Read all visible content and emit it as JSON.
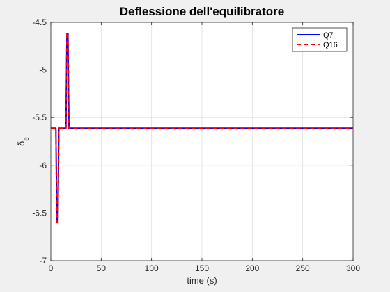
{
  "chart_data": {
    "type": "line",
    "title": "Deflessione dell'equilibratore",
    "xlabel": "time (s)",
    "ylabel": {
      "main": "δ",
      "sub": "e"
    },
    "xlim": [
      0,
      300
    ],
    "ylim": [
      -7,
      -4.5
    ],
    "xticks": [
      0,
      50,
      100,
      150,
      200,
      250,
      300
    ],
    "yticks": [
      -7,
      -6.5,
      -6,
      -5.5,
      -5,
      -4.5
    ],
    "xtick_labels": [
      "0",
      "50",
      "100",
      "150",
      "200",
      "250",
      "300"
    ],
    "ytick_labels": [
      "-7",
      "-6.5",
      "-6",
      "-5.5",
      "-5",
      "-4.5"
    ],
    "grid": true,
    "legend_position": "top-right",
    "series": [
      {
        "name": "Q7",
        "color": "#0000ff",
        "style": "solid",
        "x": [
          0,
          5,
          6,
          7,
          8,
          15,
          16,
          17,
          18,
          300
        ],
        "y": [
          -5.61,
          -5.61,
          -6.6,
          -6.6,
          -5.61,
          -5.61,
          -4.62,
          -4.62,
          -5.61,
          -5.61
        ]
      },
      {
        "name": "Q16",
        "color": "#ff0000",
        "style": "dashed",
        "x": [
          0,
          5,
          6,
          7,
          8,
          15,
          16,
          17,
          18,
          300
        ],
        "y": [
          -5.61,
          -5.61,
          -6.6,
          -6.6,
          -5.61,
          -5.61,
          -4.62,
          -4.62,
          -5.61,
          -5.61
        ]
      }
    ]
  }
}
